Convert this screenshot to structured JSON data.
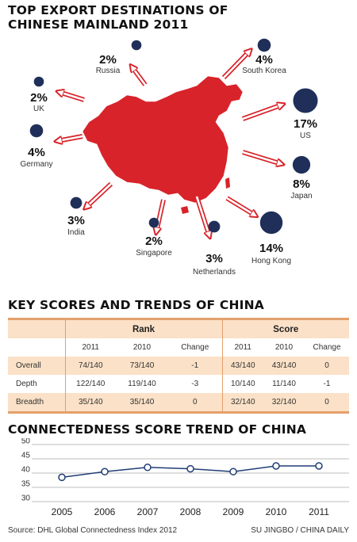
{
  "header": {
    "title_line1": "TOP EXPORT DESTINATIONS OF",
    "title_line2": "CHINESE MAINLAND 2011"
  },
  "colors": {
    "map_red": "#d8232a",
    "arrow_red": "#d8232a",
    "dot_navy": "#1f2f59",
    "band": "#fbe1c7",
    "rule": "#e3a06b"
  },
  "chart_data": [
    {
      "type": "bubble-map",
      "destinations": [
        {
          "name": "Russia",
          "pct_label": "2%",
          "value": 2
        },
        {
          "name": "UK",
          "pct_label": "2%",
          "value": 2
        },
        {
          "name": "Germany",
          "pct_label": "4%",
          "value": 4
        },
        {
          "name": "India",
          "pct_label": "3%",
          "value": 3
        },
        {
          "name": "Singapore",
          "pct_label": "2%",
          "value": 2
        },
        {
          "name": "Netherlands",
          "pct_label": "3%",
          "value": 3
        },
        {
          "name": "Hong Kong",
          "pct_label": "14%",
          "value": 14
        },
        {
          "name": "Japan",
          "pct_label": "8%",
          "value": 8
        },
        {
          "name": "US",
          "pct_label": "17%",
          "value": 17
        },
        {
          "name": "South Korea",
          "pct_label": "4%",
          "value": 4
        }
      ]
    },
    {
      "type": "table",
      "title": "KEY SCORES AND TRENDS OF CHINA",
      "groups": [
        "Rank",
        "Score"
      ],
      "columns": [
        "2011",
        "2010",
        "Change",
        "2011",
        "2010",
        "Change"
      ],
      "rows": [
        {
          "label": "Overall",
          "cells": [
            "74/140",
            "73/140",
            "-1",
            "43/140",
            "43/140",
            "0"
          ]
        },
        {
          "label": "Depth",
          "cells": [
            "122/140",
            "119/140",
            "-3",
            "10/140",
            "11/140",
            "-1"
          ]
        },
        {
          "label": "Breadth",
          "cells": [
            "35/140",
            "35/140",
            "0",
            "32/140",
            "32/140",
            "0"
          ]
        }
      ]
    },
    {
      "type": "line",
      "title": "CONNECTEDNESS SCORE TREND OF CHINA",
      "categories": [
        "2005",
        "2006",
        "2007",
        "2008",
        "2009",
        "2010",
        "2011"
      ],
      "series": [
        {
          "values": [
            38.5,
            40.5,
            42,
            41.5,
            40.5,
            42.5,
            42.5
          ]
        }
      ],
      "yticks": [
        "50",
        "45",
        "40",
        "35",
        "30"
      ],
      "ylim": [
        30,
        50
      ],
      "grid": true
    }
  ],
  "footer": {
    "source": "Source: DHL Global Connectedness Index 2012",
    "credit": "SU JINGBO / CHINA DAILY"
  }
}
